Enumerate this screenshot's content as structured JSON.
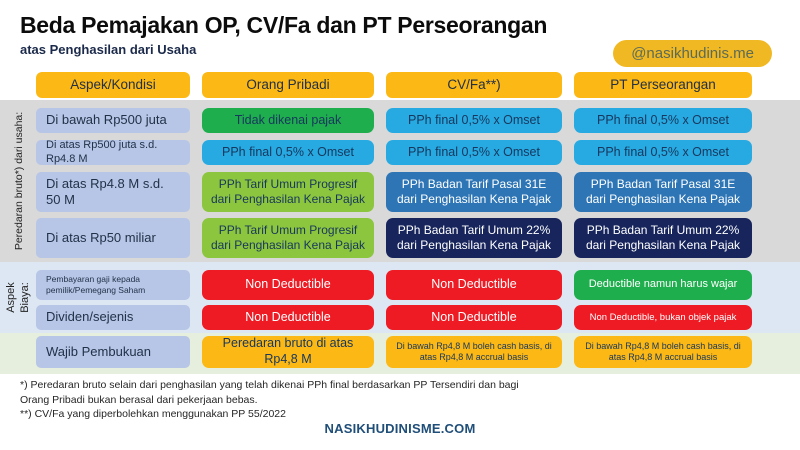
{
  "header": {
    "title": "Beda Pemajakan OP, CV/Fa dan PT Perseorangan",
    "subtitle": "atas Penghasilan dari Usaha",
    "badge": "@nasikhudinis.me"
  },
  "table": {
    "column_headers": [
      "Aspek/Kondisi",
      "Orang Pribadi",
      "CV/Fa**)",
      "PT Perseorangan"
    ],
    "section_labels": {
      "peredaran": "Peredaran bruto*) dari usaha:",
      "biaya": "Aspek\nBiaya:"
    },
    "rows": [
      {
        "label": "Di bawah Rp500 juta",
        "cells": [
          "Tidak dikenai pajak",
          "PPh final 0,5% x Omset",
          "PPh final 0,5% x Omset"
        ]
      },
      {
        "label": "Di atas Rp500 juta s.d. Rp4.8 M",
        "cells": [
          "PPh final 0,5% x Omset",
          "PPh final 0,5% x Omset",
          "PPh final 0,5% x Omset"
        ]
      },
      {
        "label": "Di atas Rp4.8 M s.d. 50 M",
        "cells": [
          "PPh Tarif Umum Progresif dari Penghasilan Kena Pajak",
          "PPh Badan Tarif Pasal 31E dari Penghasilan Kena Pajak",
          "PPh Badan Tarif Pasal 31E dari Penghasilan Kena Pajak"
        ]
      },
      {
        "label": "Di atas Rp50 miliar",
        "cells": [
          "PPh Tarif Umum Progresif dari Penghasilan Kena Pajak",
          "PPh Badan Tarif Umum 22% dari Penghasilan Kena Pajak",
          "PPh Badan Tarif Umum 22% dari Penghasilan Kena Pajak"
        ]
      },
      {
        "label": "Pembayaran gaji kepada pemilik/Pemegang Saham",
        "cells": [
          "Non Deductible",
          "Non Deductible",
          "Deductible namun harus wajar"
        ]
      },
      {
        "label": "Dividen/sejenis",
        "cells": [
          "Non Deductible",
          "Non Deductible",
          "Non Deductible, bukan objek pajak"
        ]
      },
      {
        "label": "Wajib Pembukuan",
        "cells": [
          "Peredaran bruto di atas Rp4,8 M",
          "Di bawah Rp4,8 M boleh cash basis, di atas Rp4,8 M accrual basis",
          "Di bawah Rp4,8 M boleh cash basis, di atas Rp4,8 M accrual basis"
        ]
      }
    ]
  },
  "footnotes": [
    "*) Peredaran bruto selain dari penghasilan yang telah dikenai PPh final berdasarkan PP Tersendiri dan bagi Orang Pribadi bukan berasal dari pekerjaan bebas.",
    "**) CV/Fa yang diperbolehkan menggunakan PP 55/2022"
  ],
  "footer": {
    "site": "NASIKHUDINISME.COM"
  },
  "colors": {
    "header_yellow": "#FCB815",
    "label_lavender": "#B7C5E6",
    "green": "#1FAE4D",
    "lime_green": "#8CC63E",
    "cyan_blue": "#27AAE1",
    "medium_blue": "#2E75B6",
    "dark_navy": "#17255C",
    "red": "#EE1B24",
    "band_gray": "#D9D9D9",
    "band_light_blue": "#DDE7F3",
    "band_light_green": "#E6EEDD",
    "dark_text": "#17375E",
    "footer_blue": "#1F4E79",
    "badge_yellow": "#F0B822"
  }
}
